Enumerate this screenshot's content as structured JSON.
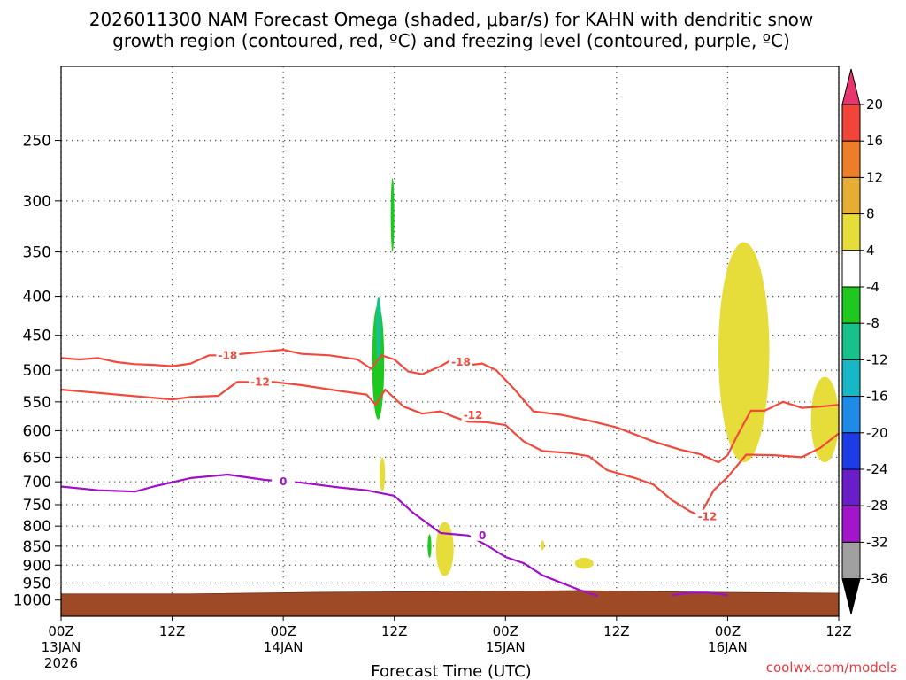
{
  "page": {
    "title_line1": "2026011300 NAM Forecast Omega (shaded, μbar/s) for KAHN with dendritic snow",
    "title_line2": "growth region (contoured, red, ºC) and freezing level (contoured, purple, ºC)",
    "credit": "coolwx.com/models"
  },
  "chart_data": {
    "type": "time-height cross section",
    "title": "2026011300 NAM Forecast Omega (shaded, μbar/s) for KAHN with dendritic snow growth region (contoured, red, ºC) and freezing level (contoured, purple, ºC)",
    "xlabel": "Forecast Time (UTC)",
    "ylabel": "",
    "xlim_hours": [
      0,
      84
    ],
    "y_axis": {
      "scale": "log-pressure",
      "ylim_mb": [
        1050,
        200
      ],
      "inverted": true,
      "ticks": [
        250,
        300,
        350,
        400,
        450,
        500,
        550,
        600,
        650,
        700,
        750,
        800,
        850,
        900,
        950,
        1000
      ]
    },
    "x_ticks": [
      {
        "hour": 0,
        "line1": "00Z",
        "line2": "13JAN",
        "line3": "2026"
      },
      {
        "hour": 12,
        "line1": "12Z",
        "line2": "",
        "line3": ""
      },
      {
        "hour": 24,
        "line1": "00Z",
        "line2": "14JAN",
        "line3": ""
      },
      {
        "hour": 36,
        "line1": "12Z",
        "line2": "",
        "line3": ""
      },
      {
        "hour": 48,
        "line1": "00Z",
        "line2": "15JAN",
        "line3": ""
      },
      {
        "hour": 60,
        "line1": "12Z",
        "line2": "",
        "line3": ""
      },
      {
        "hour": 72,
        "line1": "00Z",
        "line2": "16JAN",
        "line3": ""
      },
      {
        "hour": 84,
        "line1": "12Z",
        "line2": "",
        "line3": ""
      }
    ],
    "grid": true,
    "colorbar": {
      "units": "μbar/s",
      "levels": [
        20,
        16,
        12,
        8,
        4,
        -4,
        -8,
        -12,
        -16,
        -20,
        -24,
        -28,
        -32,
        -36
      ],
      "bins": [
        {
          "color": "#e8356e"
        },
        {
          "color": "#f2453a"
        },
        {
          "color": "#ee7d2a"
        },
        {
          "color": "#e5ad32"
        },
        {
          "color": "#e6dc3a"
        },
        {
          "color": "#ffffff"
        },
        {
          "color": "#1ec81e"
        },
        {
          "color": "#18c08a"
        },
        {
          "color": "#18b7c8"
        },
        {
          "color": "#1e8ce6"
        },
        {
          "color": "#1e3ce6"
        },
        {
          "color": "#6a1ec8"
        },
        {
          "color": "#a016c8"
        },
        {
          "color": "#a0a0a0"
        },
        {
          "color": "#000000"
        }
      ]
    },
    "contours": [
      {
        "name": "isotherm -18C",
        "color": "#f04a3e",
        "label": "-18",
        "label_positions": [
          {
            "hour": 18,
            "p": 478
          },
          {
            "hour": 43.2,
            "p": 488
          }
        ],
        "points": [
          [
            0,
            482
          ],
          [
            2,
            484
          ],
          [
            4,
            482
          ],
          [
            6,
            488
          ],
          [
            8,
            491
          ],
          [
            10,
            492
          ],
          [
            12,
            494
          ],
          [
            14,
            490
          ],
          [
            16,
            478
          ],
          [
            18,
            478
          ],
          [
            21,
            474
          ],
          [
            24,
            470
          ],
          [
            26,
            476
          ],
          [
            29,
            478
          ],
          [
            32,
            484
          ],
          [
            33.5,
            498
          ],
          [
            34.6,
            478
          ],
          [
            36,
            484
          ],
          [
            37.5,
            502
          ],
          [
            39,
            506
          ],
          [
            41,
            494
          ],
          [
            42,
            486
          ],
          [
            43,
            494
          ],
          [
            45.5,
            490
          ],
          [
            47,
            500
          ],
          [
            49,
            530
          ],
          [
            51,
            566
          ],
          [
            54,
            572
          ],
          [
            57,
            582
          ],
          [
            60,
            594
          ],
          [
            64,
            620
          ],
          [
            67,
            636
          ],
          [
            69,
            644
          ],
          [
            71,
            660
          ],
          [
            72,
            646
          ],
          [
            73,
            610
          ],
          [
            74.5,
            565
          ],
          [
            76,
            565
          ],
          [
            78,
            550
          ],
          [
            80,
            560
          ],
          [
            82,
            558
          ],
          [
            84,
            555
          ]
        ]
      },
      {
        "name": "isotherm -12C",
        "color": "#f04a3e",
        "label": "-12",
        "label_positions": [
          {
            "hour": 21.5,
            "p": 518
          },
          {
            "hour": 44.5,
            "p": 573
          },
          {
            "hour": 69.8,
            "p": 778
          }
        ],
        "points": [
          [
            0,
            530
          ],
          [
            3,
            534
          ],
          [
            6,
            538
          ],
          [
            9,
            542
          ],
          [
            12,
            546
          ],
          [
            14,
            542
          ],
          [
            17,
            540
          ],
          [
            19,
            518
          ],
          [
            23,
            518
          ],
          [
            26,
            523
          ],
          [
            30,
            532
          ],
          [
            33,
            538
          ],
          [
            34,
            555
          ],
          [
            35,
            530
          ],
          [
            37,
            558
          ],
          [
            39,
            570
          ],
          [
            41,
            566
          ],
          [
            42.5,
            576
          ],
          [
            44,
            584
          ],
          [
            46,
            585
          ],
          [
            48,
            590
          ],
          [
            50,
            620
          ],
          [
            52,
            638
          ],
          [
            55,
            642
          ],
          [
            57,
            648
          ],
          [
            59,
            676
          ],
          [
            62,
            692
          ],
          [
            64,
            706
          ],
          [
            66,
            740
          ],
          [
            68,
            766
          ],
          [
            69,
            775
          ],
          [
            70.5,
            718
          ],
          [
            72,
            690
          ],
          [
            74,
            645
          ],
          [
            77,
            646
          ],
          [
            80,
            650
          ],
          [
            82,
            632
          ],
          [
            84,
            605
          ]
        ]
      },
      {
        "name": "freezing level 0C",
        "color": "#a010c8",
        "label": "0",
        "label_positions": [
          {
            "hour": 24,
            "p": 700
          },
          {
            "hour": 45.5,
            "p": 823
          }
        ],
        "points": [
          [
            0,
            710
          ],
          [
            4,
            718
          ],
          [
            8,
            721
          ],
          [
            10,
            710
          ],
          [
            14,
            692
          ],
          [
            18,
            685
          ],
          [
            22,
            696
          ],
          [
            26,
            702
          ],
          [
            30,
            712
          ],
          [
            33,
            718
          ],
          [
            36,
            730
          ],
          [
            38,
            768
          ],
          [
            41,
            817
          ],
          [
            44,
            823
          ],
          [
            46,
            848
          ],
          [
            48,
            878
          ],
          [
            50,
            895
          ],
          [
            52,
            928
          ],
          [
            56,
            970
          ],
          [
            58,
            988
          ]
        ]
      },
      {
        "name": "freezing level 0C (16JAN)",
        "color": "#a010c8",
        "label": "",
        "label_positions": [],
        "points": [
          [
            66,
            985
          ],
          [
            68,
            978
          ],
          [
            70,
            978
          ],
          [
            72,
            985
          ]
        ]
      }
    ],
    "omega_regions": [
      {
        "sign": "upward",
        "approx_value": -6,
        "time_hours": [
          33.6,
          34.9
        ],
        "pressure_mb": [
          580,
          410
        ],
        "color_bin": "-4 to -8"
      },
      {
        "sign": "upward",
        "approx_value": -6,
        "time_hours": [
          35.7,
          35.9
        ],
        "pressure_mb": [
          280,
          350
        ],
        "color_bin": "-4 to -8"
      },
      {
        "sign": "upward",
        "approx_value": -10,
        "time_hours": [
          34.0,
          34.6
        ],
        "pressure_mb": [
          400,
          490
        ],
        "color_bin": "-8 to -12"
      },
      {
        "sign": "upward",
        "approx_value": -6,
        "time_hours": [
          39.6,
          40.0
        ],
        "pressure_mb": [
          820,
          880
        ],
        "color_bin": "-4 to -8"
      },
      {
        "sign": "downward",
        "approx_value": 6,
        "time_hours": [
          34.4,
          35.0
        ],
        "pressure_mb": [
          650,
          720
        ],
        "color_bin": "4 to 8"
      },
      {
        "sign": "downward",
        "approx_value": 6,
        "time_hours": [
          40.5,
          42.4
        ],
        "pressure_mb": [
          790,
          930
        ],
        "color_bin": "4 to 8"
      },
      {
        "sign": "downward",
        "approx_value": 6,
        "time_hours": [
          51.8,
          52.2
        ],
        "pressure_mb": [
          835,
          860
        ],
        "color_bin": "4 to 8"
      },
      {
        "sign": "downward",
        "approx_value": 6,
        "time_hours": [
          55.5,
          57.5
        ],
        "pressure_mb": [
          880,
          910
        ],
        "color_bin": "4 to 8"
      },
      {
        "sign": "downward",
        "approx_value": 6,
        "time_hours": [
          71.0,
          76.5
        ],
        "pressure_mb": [
          340,
          660
        ],
        "color_bin": "4 to 8"
      },
      {
        "sign": "downward",
        "approx_value": 6,
        "time_hours": [
          81.0,
          84.0
        ],
        "pressure_mb": [
          510,
          660
        ],
        "color_bin": "4 to 8"
      }
    ],
    "terrain": {
      "label": "ground / below surface",
      "color": "#9e4a26",
      "surface_pressure_mb": [
        1000,
        1000,
        995,
        993,
        990,
        995,
        998
      ]
    }
  }
}
